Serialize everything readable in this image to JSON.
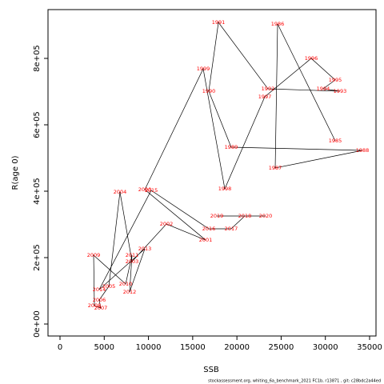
{
  "chart_data": {
    "type": "scatter",
    "xlabel": "SSB",
    "ylabel": "R(age 0)",
    "footnote": "stockassessment.org, whiting_6a_benchmark_2021 FC1b, r13871 , git: c28bdc2a44ed",
    "point_labels": [
      "1985",
      "1986",
      "1987",
      "1988",
      "1989",
      "1990",
      "1991",
      "1992",
      "1993",
      "1994",
      "1995",
      "1996",
      "1997",
      "1998",
      "1999",
      "2000",
      "2001",
      "2002",
      "2003",
      "2004",
      "2005",
      "2006",
      "2007",
      "2008",
      "2009",
      "2010",
      "2011",
      "2012",
      "2013",
      "2014",
      "2015",
      "2016",
      "2017",
      "2018",
      "2019",
      "2020"
    ],
    "x": [
      31110,
      24600,
      24330,
      34190,
      19350,
      16820,
      17910,
      23510,
      31650,
      29750,
      31110,
      28400,
      23150,
      18630,
      16190,
      9590,
      16460,
      12030,
      8140,
      6780,
      5520,
      4430,
      4610,
      3890,
      3800,
      7420,
      8140,
      7870,
      9590,
      4430,
      10310,
      16820,
      19350,
      20890,
      17730,
      23240
    ],
    "values": [
      551800,
      903600,
      469900,
      522900,
      532500,
      701200,
      908400,
      708400,
      701200,
      708400,
      734900,
      800000,
      684300,
      407200,
      768700,
      404800,
      253000,
      301200,
      188000,
      397600,
      113300,
      72300,
      48200,
      55400,
      207200,
      120500,
      207200,
      96400,
      226500,
      103600,
      402400,
      286700,
      286700,
      325300,
      325300,
      325300
    ],
    "line_color": "#000000",
    "label_color": "#ff0000",
    "xlim": [
      -1357,
      35724
    ],
    "ylim": [
      -36100,
      947000
    ],
    "xticks": [
      0,
      5000,
      10000,
      15000,
      20000,
      25000,
      30000,
      35000
    ],
    "yticks": [
      {
        "value": 0,
        "label": "0e+00"
      },
      {
        "value": 200000,
        "label": "2e+05"
      },
      {
        "value": 400000,
        "label": "4e+05"
      },
      {
        "value": 600000,
        "label": "6e+05"
      },
      {
        "value": 800000,
        "label": "8e+05"
      }
    ]
  }
}
